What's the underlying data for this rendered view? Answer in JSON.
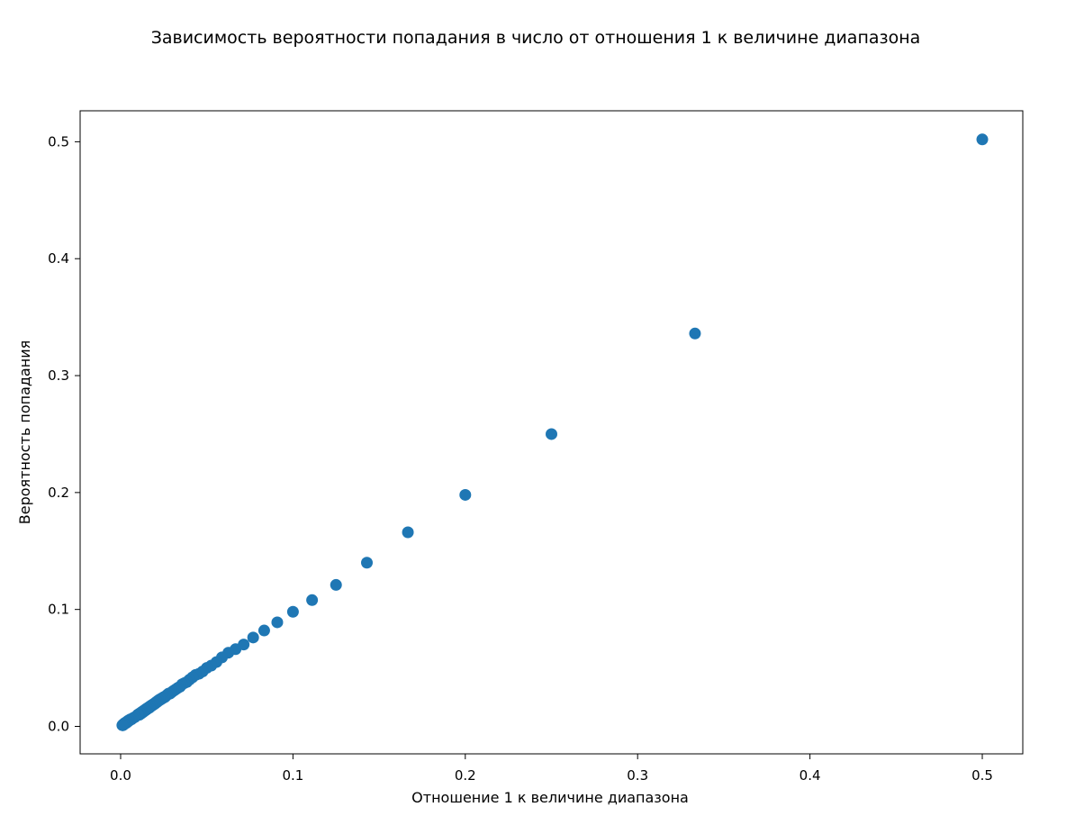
{
  "chart_data": {
    "type": "scatter",
    "title": "Зависимость вероятности попадания в число от отношения 1 к величине диапазона",
    "xlabel": "Отношение 1 к величине диапазона",
    "ylabel": "Вероятность попадания",
    "xlim": [
      -0.0235,
      0.5235
    ],
    "ylim": [
      -0.0235,
      0.5265
    ],
    "xticks": [
      0.0,
      0.1,
      0.2,
      0.3,
      0.4,
      0.5
    ],
    "xtick_labels": [
      "0.0",
      "0.1",
      "0.2",
      "0.3",
      "0.4",
      "0.5"
    ],
    "yticks": [
      0.0,
      0.1,
      0.2,
      0.3,
      0.4,
      0.5
    ],
    "ytick_labels": [
      "0.0",
      "0.1",
      "0.2",
      "0.3",
      "0.4",
      "0.5"
    ],
    "grid": false,
    "marker_color": "#1f77b4",
    "x": [
      0.5,
      0.3333,
      0.25,
      0.2,
      0.1667,
      0.1429,
      0.125,
      0.1111,
      0.1,
      0.0909,
      0.0833,
      0.0769,
      0.0714,
      0.0667,
      0.0625,
      0.0588,
      0.0556,
      0.0526,
      0.05,
      0.0476,
      0.0455,
      0.0435,
      0.0417,
      0.04,
      0.0385,
      0.037,
      0.0357,
      0.0345,
      0.0333,
      0.0323,
      0.0313,
      0.0303,
      0.0294,
      0.0286,
      0.0278,
      0.027,
      0.0263,
      0.0256,
      0.025,
      0.0244,
      0.0238,
      0.0233,
      0.0227,
      0.0222,
      0.0217,
      0.0213,
      0.0208,
      0.0204,
      0.02,
      0.0196,
      0.0192,
      0.0189,
      0.0185,
      0.0182,
      0.0179,
      0.0175,
      0.0172,
      0.0169,
      0.0167,
      0.0164,
      0.0161,
      0.0159,
      0.0156,
      0.0154,
      0.0152,
      0.0149,
      0.0147,
      0.0145,
      0.0143,
      0.0141,
      0.0139,
      0.0137,
      0.0135,
      0.0133,
      0.0132,
      0.013,
      0.0128,
      0.0127,
      0.0125,
      0.0123,
      0.0122,
      0.012,
      0.0119,
      0.0118,
      0.0116,
      0.0115,
      0.0114,
      0.0112,
      0.0111,
      0.011,
      0.0109,
      0.0108,
      0.0106,
      0.0105,
      0.0104,
      0.0103,
      0.0102,
      0.0101,
      0.01,
      0.0083,
      0.0071,
      0.0063,
      0.0056,
      0.005,
      0.0045,
      0.0042,
      0.0038,
      0.0036,
      0.0033,
      0.0029,
      0.0025,
      0.0022,
      0.002,
      0.0017,
      0.0014,
      0.0012,
      0.001
    ],
    "y": [
      0.502,
      0.336,
      0.25,
      0.198,
      0.166,
      0.14,
      0.121,
      0.108,
      0.098,
      0.089,
      0.082,
      0.076,
      0.07,
      0.066,
      0.063,
      0.059,
      0.055,
      0.052,
      0.05,
      0.047,
      0.045,
      0.044,
      0.042,
      0.04,
      0.038,
      0.037,
      0.036,
      0.034,
      0.033,
      0.032,
      0.031,
      0.03,
      0.029,
      0.028,
      0.028,
      0.027,
      0.026,
      0.025,
      0.025,
      0.024,
      0.024,
      0.023,
      0.023,
      0.022,
      0.022,
      0.021,
      0.021,
      0.02,
      0.02,
      0.019,
      0.019,
      0.019,
      0.018,
      0.018,
      0.018,
      0.017,
      0.017,
      0.017,
      0.016,
      0.016,
      0.016,
      0.016,
      0.015,
      0.015,
      0.015,
      0.015,
      0.014,
      0.014,
      0.014,
      0.014,
      0.014,
      0.013,
      0.013,
      0.013,
      0.013,
      0.013,
      0.012,
      0.012,
      0.012,
      0.012,
      0.012,
      0.012,
      0.011,
      0.011,
      0.011,
      0.011,
      0.011,
      0.011,
      0.011,
      0.011,
      0.01,
      0.01,
      0.01,
      0.01,
      0.01,
      0.01,
      0.01,
      0.01,
      0.01,
      0.008,
      0.007,
      0.006,
      0.006,
      0.005,
      0.005,
      0.004,
      0.004,
      0.004,
      0.003,
      0.003,
      0.003,
      0.002,
      0.002,
      0.002,
      0.001,
      0.001,
      0.001
    ]
  }
}
